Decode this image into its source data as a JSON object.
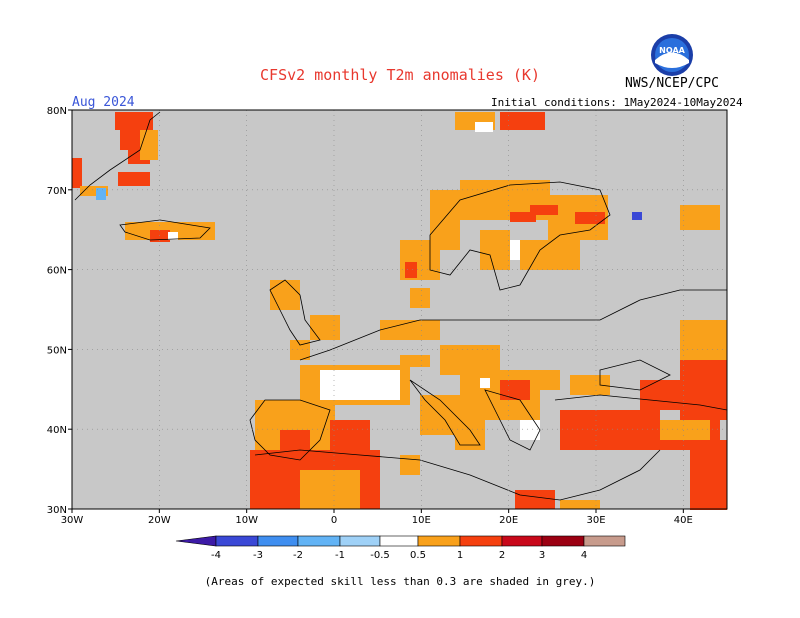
{
  "header": {
    "title": "CFSv2 monthly T2m anomalies (K)",
    "agency": "NWS/NCEP/CPC",
    "period": "Aug 2024",
    "initial_conditions": "Initial conditions: 1May2024-10May2024",
    "logo_text": "NOAA"
  },
  "map": {
    "lat_labels": [
      "80N",
      "70N",
      "60N",
      "50N",
      "40N",
      "30N"
    ],
    "lon_labels": [
      "30W",
      "20W",
      "10W",
      "0",
      "10E",
      "20E",
      "30E",
      "40E"
    ],
    "background_color": "#c8c8c8",
    "grid": "dotted"
  },
  "colorbar": {
    "labels": [
      "-4",
      "-3",
      "-2",
      "-1",
      "-0.5",
      "0.5",
      "1",
      "2",
      "3",
      "4"
    ],
    "colors": [
      "#3c1aa6",
      "#3a48d6",
      "#3f8ef0",
      "#62b3f5",
      "#9fd1f7",
      "#ffffff",
      "#f9a11b",
      "#f5400f",
      "#c8081a",
      "#9b0012",
      "#c79b8c",
      "#8b5b4b"
    ]
  },
  "footer": {
    "note": "(Areas of expected skill less than 0.3 are shaded in grey.)"
  }
}
